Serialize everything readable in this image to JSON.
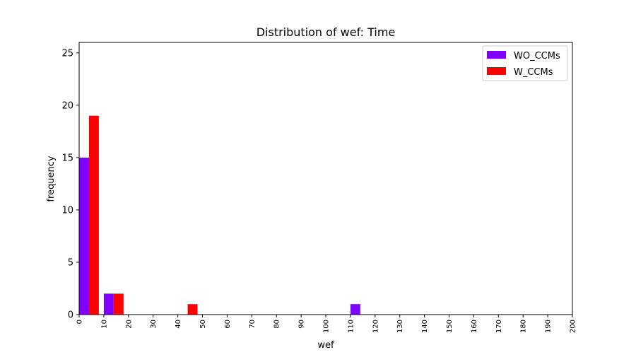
{
  "chart_data": {
    "type": "bar",
    "title": "Distribution of wef: Time",
    "xlabel": "wef",
    "ylabel": "frequency",
    "xlim": [
      0,
      200
    ],
    "ylim": [
      0,
      26
    ],
    "xticks": [
      "0",
      "10",
      "20",
      "30",
      "40",
      "50",
      "60",
      "70",
      "80",
      "90",
      "100",
      "110",
      "120",
      "130",
      "140",
      "150",
      "160",
      "170",
      "180",
      "190",
      "200"
    ],
    "yticks": [
      "0",
      "5",
      "10",
      "15",
      "20",
      "25"
    ],
    "bin_width": 10,
    "grid": false,
    "legend_position": "top-right",
    "series": [
      {
        "name": "WO_CCMs",
        "color": "#7f00ff",
        "bins": [
          [
            0,
            15
          ],
          [
            10,
            2
          ],
          [
            110,
            1
          ]
        ]
      },
      {
        "name": "W_CCMs",
        "color": "#ff0000",
        "bins": [
          [
            0,
            19
          ],
          [
            10,
            2
          ],
          [
            40,
            1
          ]
        ]
      }
    ]
  }
}
